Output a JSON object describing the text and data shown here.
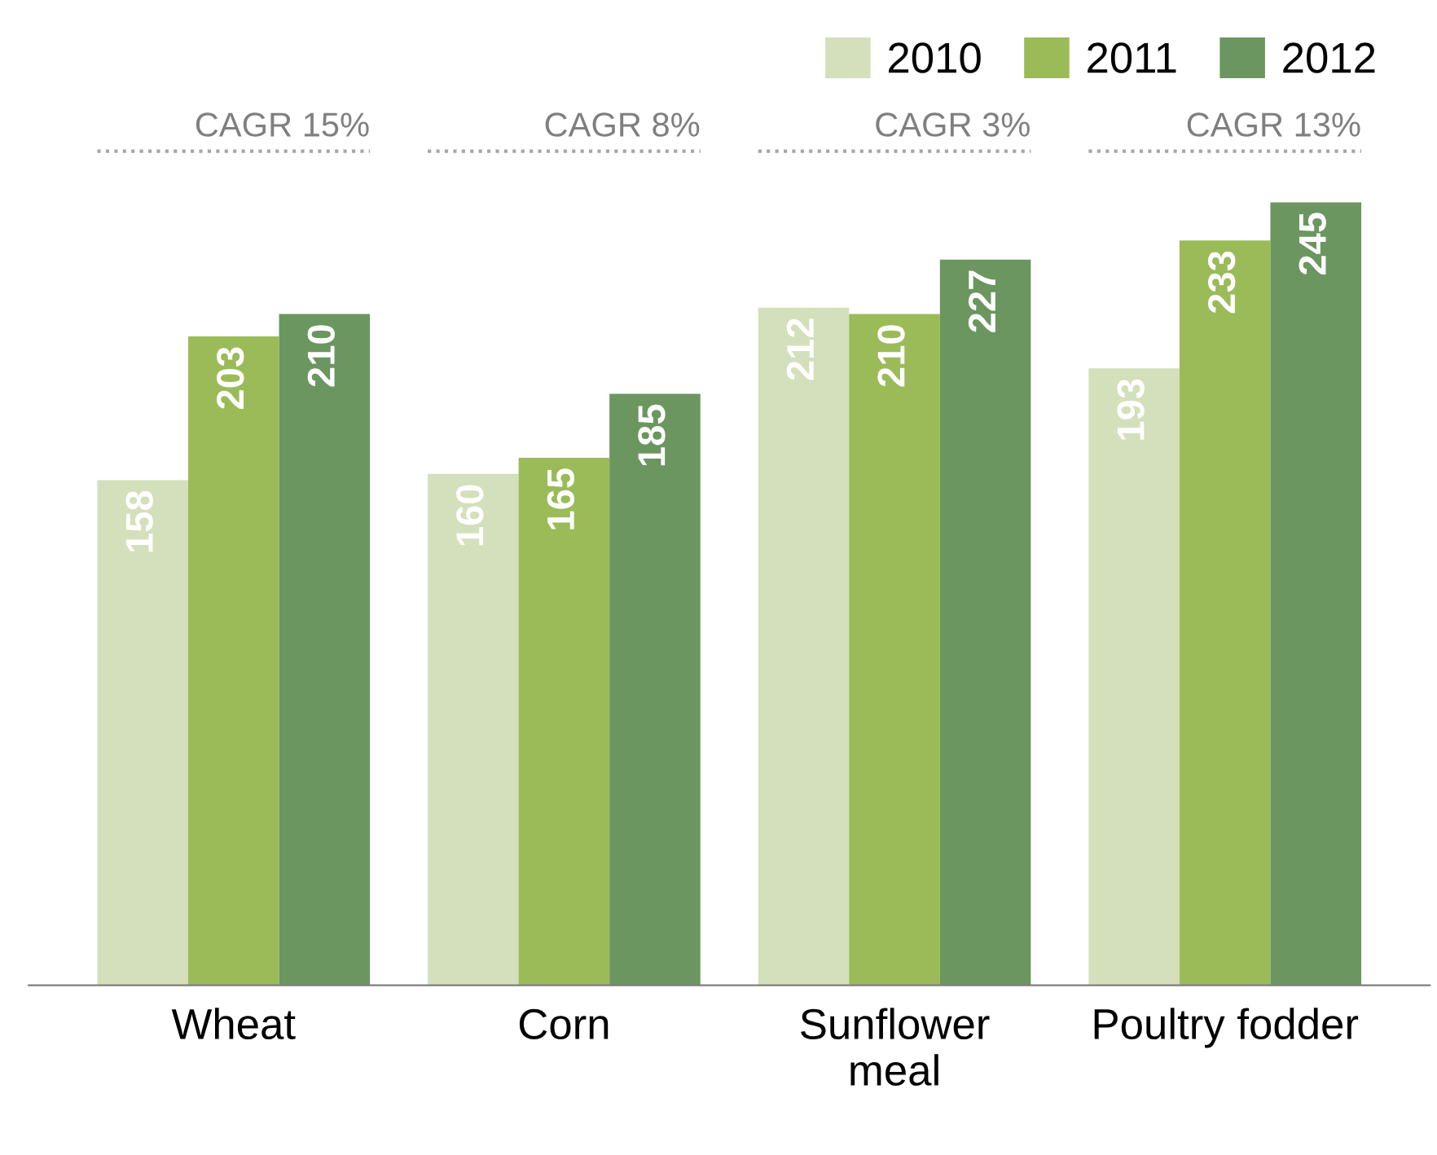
{
  "chart_data": {
    "type": "bar",
    "categories": [
      "Wheat",
      "Corn",
      "Sunflower\nmeal",
      "Poultry fodder"
    ],
    "series": [
      {
        "name": "2010",
        "color": "#d3e0bb",
        "values": [
          158,
          160,
          212,
          193
        ]
      },
      {
        "name": "2011",
        "color": "#9bbb59",
        "values": [
          203,
          165,
          210,
          233
        ]
      },
      {
        "name": "2012",
        "color": "#6b9660",
        "values": [
          210,
          185,
          227,
          245
        ]
      }
    ],
    "tick_labels": "x",
    "data_labels": true,
    "legend": "top right",
    "grid": false,
    "annotations": [
      "CAGR 15%",
      "CAGR 8%",
      "CAGR 3%",
      "CAGR 13%"
    ]
  }
}
